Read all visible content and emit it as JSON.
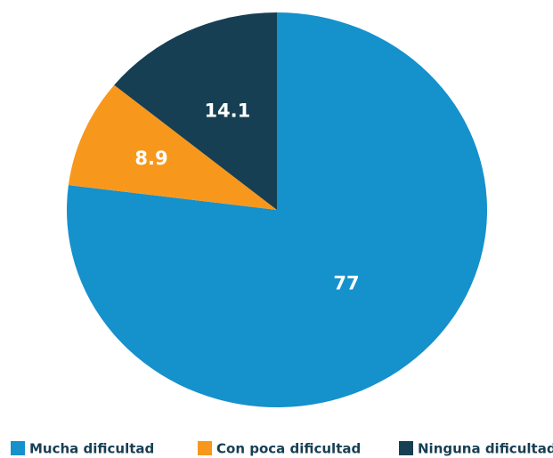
{
  "chart_data": {
    "type": "pie",
    "categories": [
      "Mucha dificultad",
      "Con poca dificultad",
      "Ninguna dificultad"
    ],
    "values": [
      77,
      8.9,
      14.1
    ],
    "colors": [
      "#1591cc",
      "#f7981d",
      "#173f53"
    ],
    "legend": "bottom"
  }
}
